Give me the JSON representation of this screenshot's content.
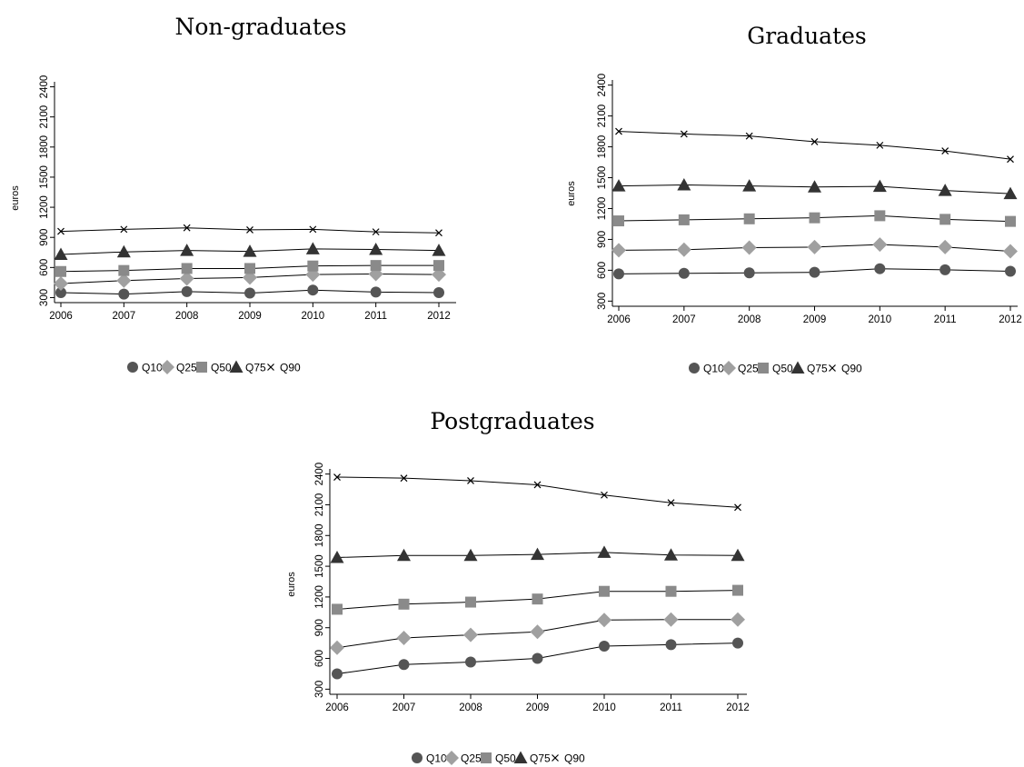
{
  "chart_data": [
    {
      "type": "line",
      "title": "Non-graduates",
      "xlabel": "",
      "ylabel": "euros",
      "x": [
        "2006",
        "2007",
        "2008",
        "2009",
        "2010",
        "2011",
        "2012"
      ],
      "yticks": [
        "300",
        "600",
        "900",
        "1200",
        "1500",
        "1800",
        "2100",
        "2400"
      ],
      "ylim": [
        250,
        2450
      ],
      "grid": false,
      "legend": {
        "position": "bottom",
        "entries": [
          "Q10",
          "Q25",
          "Q50",
          "Q75",
          "Q90"
        ]
      },
      "series": [
        {
          "name": "Q10",
          "marker": "circle",
          "color": "#555555",
          "values": [
            350,
            335,
            360,
            345,
            375,
            355,
            350
          ]
        },
        {
          "name": "Q25",
          "marker": "diamond",
          "color": "#a0a0a0",
          "values": [
            440,
            470,
            490,
            500,
            530,
            535,
            530
          ]
        },
        {
          "name": "Q50",
          "marker": "square",
          "color": "#8a8a8a",
          "values": [
            560,
            570,
            590,
            590,
            615,
            620,
            620
          ]
        },
        {
          "name": "Q75",
          "marker": "triangle",
          "color": "#333333",
          "values": [
            730,
            755,
            770,
            760,
            785,
            780,
            770
          ]
        },
        {
          "name": "Q90",
          "marker": "x",
          "color": "#000000",
          "values": [
            960,
            980,
            995,
            975,
            980,
            955,
            945
          ]
        }
      ]
    },
    {
      "type": "line",
      "title": "Graduates",
      "xlabel": "",
      "ylabel": "euros",
      "x": [
        "2006",
        "2007",
        "2008",
        "2009",
        "2010",
        "2011",
        "2012"
      ],
      "yticks": [
        "300",
        "600",
        "900",
        "1200",
        "1500",
        "1800",
        "2100",
        "2400"
      ],
      "ylim": [
        250,
        2450
      ],
      "grid": false,
      "legend": {
        "position": "bottom",
        "entries": [
          "Q10",
          "Q25",
          "Q50",
          "Q75",
          "Q90"
        ]
      },
      "series": [
        {
          "name": "Q10",
          "marker": "circle",
          "color": "#555555",
          "values": [
            565,
            570,
            575,
            580,
            615,
            605,
            590
          ]
        },
        {
          "name": "Q25",
          "marker": "diamond",
          "color": "#a0a0a0",
          "values": [
            795,
            800,
            820,
            825,
            850,
            825,
            785
          ]
        },
        {
          "name": "Q50",
          "marker": "square",
          "color": "#8a8a8a",
          "values": [
            1080,
            1090,
            1100,
            1110,
            1130,
            1095,
            1075
          ]
        },
        {
          "name": "Q75",
          "marker": "triangle",
          "color": "#333333",
          "values": [
            1420,
            1430,
            1420,
            1410,
            1415,
            1375,
            1345
          ]
        },
        {
          "name": "Q90",
          "marker": "x",
          "color": "#000000",
          "values": [
            1950,
            1925,
            1905,
            1850,
            1815,
            1760,
            1680
          ]
        }
      ]
    },
    {
      "type": "line",
      "title": "Postgraduates",
      "xlabel": "",
      "ylabel": "euros",
      "x": [
        "2006",
        "2007",
        "2008",
        "2009",
        "2010",
        "2011",
        "2012"
      ],
      "yticks": [
        "300",
        "600",
        "900",
        "1200",
        "1500",
        "1800",
        "2100",
        "2400"
      ],
      "ylim": [
        250,
        2450
      ],
      "grid": false,
      "legend": {
        "position": "bottom",
        "entries": [
          "Q10",
          "Q25",
          "Q50",
          "Q75",
          "Q90"
        ]
      },
      "series": [
        {
          "name": "Q10",
          "marker": "circle",
          "color": "#555555",
          "values": [
            450,
            540,
            565,
            600,
            720,
            735,
            750
          ]
        },
        {
          "name": "Q25",
          "marker": "diamond",
          "color": "#a0a0a0",
          "values": [
            705,
            800,
            830,
            860,
            975,
            980,
            980
          ]
        },
        {
          "name": "Q50",
          "marker": "square",
          "color": "#8a8a8a",
          "values": [
            1080,
            1130,
            1150,
            1180,
            1255,
            1255,
            1265
          ]
        },
        {
          "name": "Q75",
          "marker": "triangle",
          "color": "#333333",
          "values": [
            1585,
            1605,
            1605,
            1615,
            1635,
            1610,
            1605
          ]
        },
        {
          "name": "Q90",
          "marker": "x",
          "color": "#000000",
          "values": [
            2370,
            2360,
            2335,
            2295,
            2195,
            2120,
            2075
          ]
        }
      ]
    }
  ]
}
